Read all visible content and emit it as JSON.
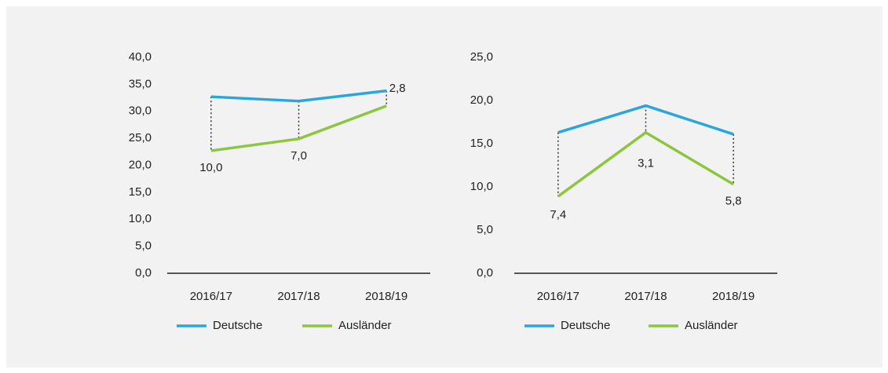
{
  "chart_data": [
    {
      "type": "line",
      "categories": [
        "2016/17",
        "2017/18",
        "2018/19"
      ],
      "series": [
        {
          "name": "Deutsche",
          "color": "#2aa6dc",
          "values": [
            32.7,
            31.9,
            33.8
          ]
        },
        {
          "name": "Ausländer",
          "color": "#8cc63f",
          "values": [
            22.7,
            24.9,
            31.0
          ]
        }
      ],
      "differences": [
        10.0,
        7.0,
        2.8
      ],
      "difference_labels": [
        "10,0",
        "7,0",
        "2,8"
      ],
      "ylim": [
        0,
        40
      ],
      "yticks": [
        {
          "value": 0,
          "label": "0,0"
        },
        {
          "value": 5,
          "label": "5,0"
        },
        {
          "value": 10,
          "label": "10,0"
        },
        {
          "value": 15,
          "label": "15,0"
        },
        {
          "value": 20,
          "label": "20,0"
        },
        {
          "value": 25,
          "label": "25,0"
        },
        {
          "value": 30,
          "label": "30,0"
        },
        {
          "value": 35,
          "label": "35,0"
        },
        {
          "value": 40,
          "label": "40,0"
        }
      ]
    },
    {
      "type": "line",
      "categories": [
        "2016/17",
        "2017/18",
        "2018/19"
      ],
      "series": [
        {
          "name": "Deutsche",
          "color": "#2aa6dc",
          "values": [
            16.3,
            19.4,
            16.1
          ]
        },
        {
          "name": "Ausländer",
          "color": "#8cc63f",
          "values": [
            8.9,
            16.3,
            10.3
          ]
        }
      ],
      "differences": [
        7.4,
        3.1,
        5.8
      ],
      "difference_labels": [
        "7,4",
        "3,1",
        "5,8"
      ],
      "ylim": [
        0,
        25
      ],
      "yticks": [
        {
          "value": 0,
          "label": "0,0"
        },
        {
          "value": 5,
          "label": "5,0"
        },
        {
          "value": 10,
          "label": "10,0"
        },
        {
          "value": 15,
          "label": "15,0"
        },
        {
          "value": 20,
          "label": "20,0"
        },
        {
          "value": 25,
          "label": "25,0"
        }
      ]
    }
  ]
}
